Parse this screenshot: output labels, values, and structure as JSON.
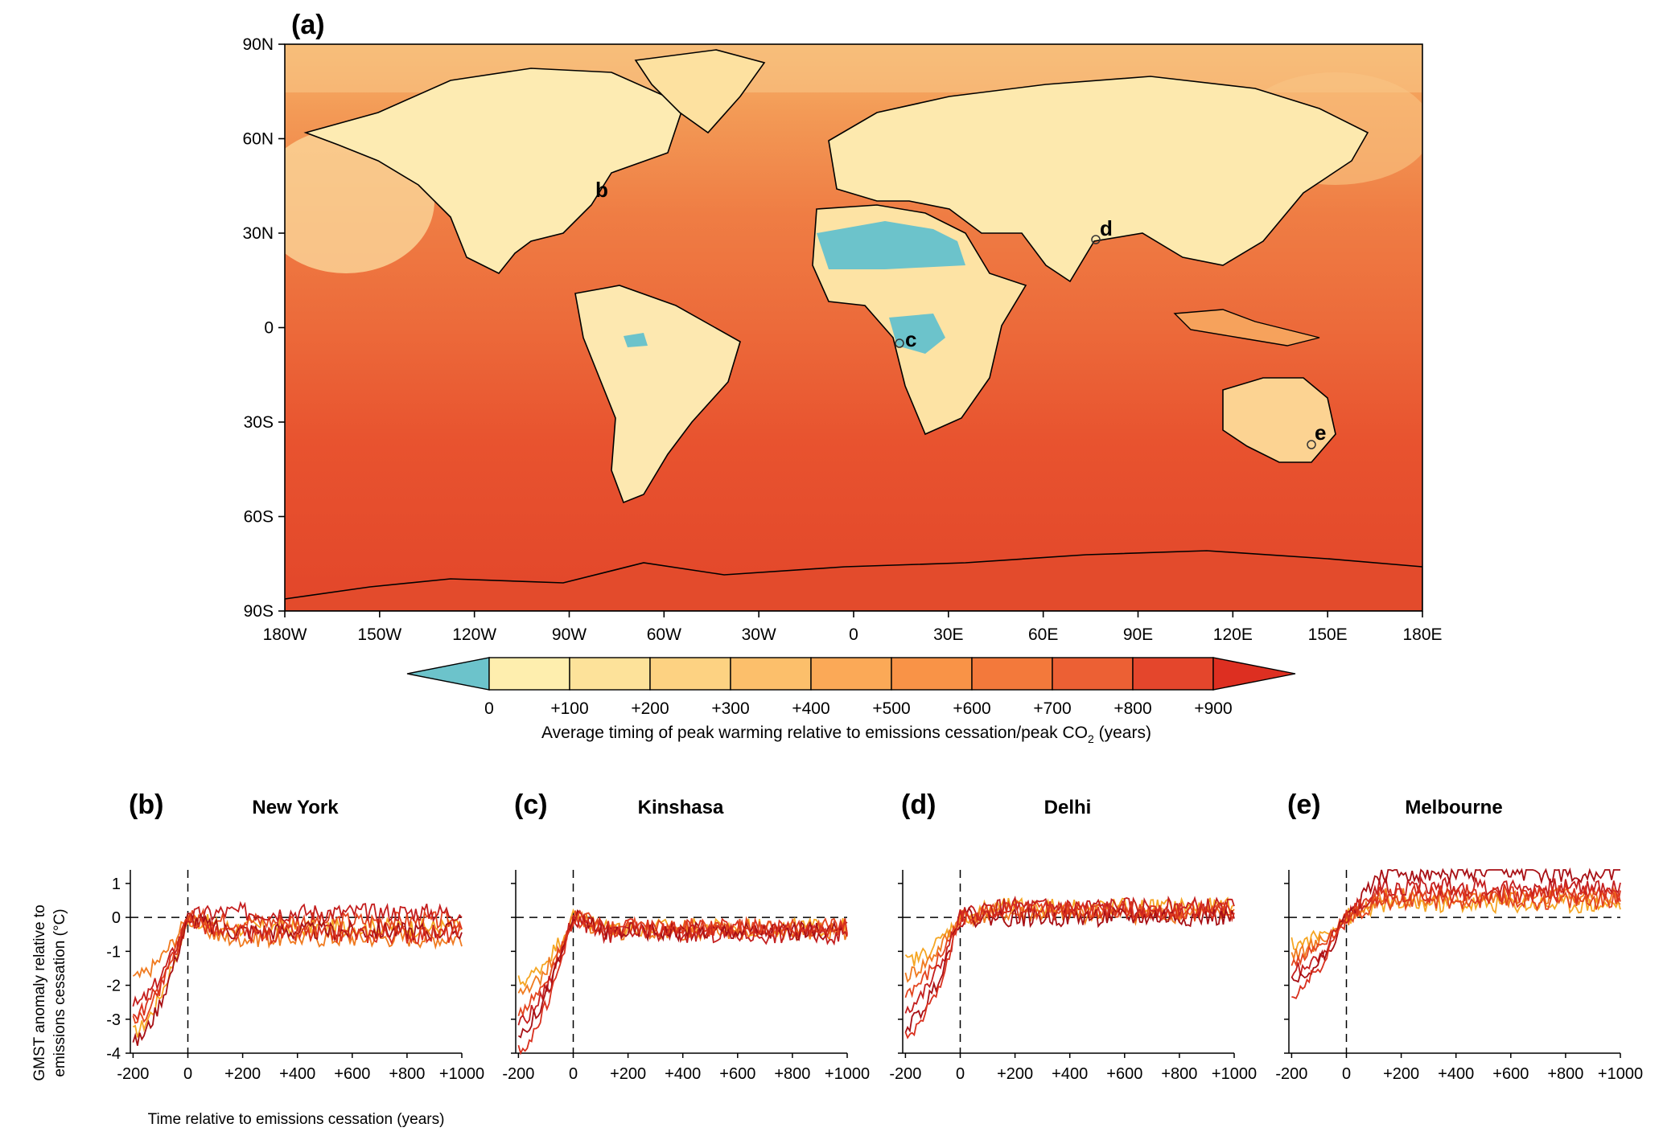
{
  "map": {
    "panel_label": "(a)",
    "lat_labels": [
      "90N",
      "60N",
      "30N",
      "0",
      "30S",
      "60S",
      "90S"
    ],
    "lon_labels": [
      "180W",
      "150W",
      "120W",
      "90W",
      "60W",
      "30W",
      "0",
      "30E",
      "60E",
      "90E",
      "120E",
      "150E",
      "180E"
    ],
    "site_markers": [
      "b",
      "c",
      "d",
      "e"
    ],
    "colorbar": {
      "tick_labels": [
        "0",
        "+100",
        "+200",
        "+300",
        "+400",
        "+500",
        "+600",
        "+700",
        "+800",
        "+900"
      ],
      "colors": [
        "#6cc3cb",
        "#feeeae",
        "#fde29a",
        "#fdd282",
        "#fcbf6b",
        "#fba957",
        "#f99347",
        "#f3793b",
        "#ec6034",
        "#e4462c",
        "#dd2f21"
      ],
      "title_main": "Average timing of peak warming relative to emissions cessation/peak CO",
      "title_sub": "2",
      "title_end": " (years)"
    }
  },
  "panels": [
    {
      "label": "(b)",
      "title": "New York",
      "start": [
        -3.4,
        -1.8,
        -3.1,
        -2.6,
        -3.7,
        -2.9
      ],
      "end": [
        -0.3,
        -0.6,
        -0.1,
        0.15,
        -0.4,
        -0.5
      ],
      "colors": [
        "#f5a623",
        "#f07a1f",
        "#e4451f",
        "#c41e1e",
        "#a80f14",
        "#d9301e"
      ]
    },
    {
      "label": "(c)",
      "title": "Kinshasa",
      "start": [
        -1.9,
        -2.3,
        -2.7,
        -3.1,
        -3.4,
        -3.9
      ],
      "end": [
        -0.3,
        -0.4,
        -0.3,
        -0.5,
        -0.4,
        -0.3
      ],
      "colors": [
        "#f5a623",
        "#f07a1f",
        "#e4451f",
        "#c41e1e",
        "#a80f14",
        "#d9301e"
      ]
    },
    {
      "label": "(d)",
      "title": "Delhi",
      "start": [
        -1.3,
        -1.7,
        -2.2,
        -2.7,
        -3.2,
        -3.6
      ],
      "end": [
        0.3,
        0.1,
        0.2,
        0.3,
        0.0,
        0.2
      ],
      "colors": [
        "#f5a623",
        "#f07a1f",
        "#e4451f",
        "#c41e1e",
        "#a80f14",
        "#d9301e"
      ]
    },
    {
      "label": "(e)",
      "title": "Melbourne",
      "start": [
        -0.8,
        -1.1,
        -1.3,
        -1.6,
        -1.9,
        -2.2
      ],
      "end": [
        0.4,
        0.6,
        0.5,
        0.9,
        1.3,
        0.7
      ],
      "colors": [
        "#f5a623",
        "#f07a1f",
        "#e4451f",
        "#c41e1e",
        "#a80f14",
        "#d9301e"
      ]
    }
  ],
  "line_axes": {
    "x_ticks": [
      "-200",
      "0",
      "+200",
      "+400",
      "+600",
      "+800",
      "+1000"
    ],
    "y_ticks": [
      "1",
      "0",
      "-1",
      "-2",
      "-3",
      "-4"
    ],
    "ylabel_line1": "GMST anomaly relative to",
    "ylabel_line2": "emissions cessation (°C)",
    "xlabel": "Time relative to emissions cessation (years)"
  },
  "chart_data": [
    {
      "type": "line",
      "title": "New York",
      "x": [
        -200,
        0,
        200,
        400,
        600,
        800,
        1000
      ],
      "xlim": [
        -210,
        1000
      ],
      "ylim": [
        -4,
        1.4
      ],
      "xlabel": "Time relative to emissions cessation (years)",
      "ylabel": "GMST anomaly relative to emissions cessation (°C)",
      "series": [
        {
          "values": [
            -3.4,
            0,
            -0.4,
            -0.5,
            -0.4,
            -0.3,
            -0.3
          ]
        },
        {
          "values": [
            -1.8,
            0,
            -0.5,
            -0.6,
            -0.6,
            -0.6,
            -0.6
          ]
        },
        {
          "values": [
            -3.1,
            0,
            -0.2,
            -0.1,
            -0.1,
            -0.1,
            -0.1
          ]
        },
        {
          "values": [
            -2.6,
            0,
            0.2,
            0.15,
            0.1,
            0.15,
            0.15
          ]
        },
        {
          "values": [
            -3.7,
            0,
            -0.4,
            -0.4,
            -0.4,
            -0.4,
            -0.4
          ]
        },
        {
          "values": [
            -2.9,
            0,
            -0.5,
            -0.5,
            -0.5,
            -0.5,
            -0.5
          ]
        }
      ]
    },
    {
      "type": "line",
      "title": "Kinshasa",
      "x": [
        -200,
        0,
        200,
        400,
        600,
        800,
        1000
      ],
      "xlim": [
        -210,
        1000
      ],
      "ylim": [
        -4,
        1.4
      ],
      "xlabel": "Time relative to emissions cessation (years)",
      "ylabel": "GMST anomaly relative to emissions cessation (°C)",
      "series": [
        {
          "values": [
            -1.9,
            0,
            -0.3,
            -0.3,
            -0.3,
            -0.3,
            -0.3
          ]
        },
        {
          "values": [
            -2.3,
            0,
            -0.4,
            -0.4,
            -0.4,
            -0.4,
            -0.4
          ]
        },
        {
          "values": [
            -2.7,
            0,
            -0.3,
            -0.3,
            -0.3,
            -0.3,
            -0.3
          ]
        },
        {
          "values": [
            -3.1,
            0,
            -0.5,
            -0.5,
            -0.5,
            -0.5,
            -0.5
          ]
        },
        {
          "values": [
            -3.4,
            0,
            -0.4,
            -0.4,
            -0.4,
            -0.4,
            -0.4
          ]
        },
        {
          "values": [
            -3.9,
            0,
            -0.3,
            -0.3,
            -0.3,
            -0.3,
            -0.3
          ]
        }
      ]
    },
    {
      "type": "line",
      "title": "Delhi",
      "x": [
        -200,
        0,
        200,
        400,
        600,
        800,
        1000
      ],
      "xlim": [
        -210,
        1000
      ],
      "ylim": [
        -4,
        1.4
      ],
      "xlabel": "Time relative to emissions cessation (years)",
      "ylabel": "GMST anomaly relative to emissions cessation (°C)",
      "series": [
        {
          "values": [
            -1.3,
            0,
            0.3,
            0.3,
            0.3,
            0.3,
            0.3
          ]
        },
        {
          "values": [
            -1.7,
            0,
            0.1,
            0.1,
            0.1,
            0.1,
            0.1
          ]
        },
        {
          "values": [
            -2.2,
            0,
            0.2,
            0.2,
            0.2,
            0.2,
            0.2
          ]
        },
        {
          "values": [
            -2.7,
            0,
            0.3,
            0.3,
            0.3,
            0.3,
            0.3
          ]
        },
        {
          "values": [
            -3.2,
            0,
            0.0,
            0.0,
            0.0,
            0.0,
            0.0
          ]
        },
        {
          "values": [
            -3.6,
            0,
            0.2,
            0.2,
            0.2,
            0.2,
            0.2
          ]
        }
      ]
    },
    {
      "type": "line",
      "title": "Melbourne",
      "x": [
        -200,
        0,
        200,
        400,
        600,
        800,
        1000
      ],
      "xlim": [
        -210,
        1000
      ],
      "ylim": [
        -4,
        1.4
      ],
      "xlabel": "Time relative to emissions cessation (years)",
      "ylabel": "GMST anomaly relative to emissions cessation (°C)",
      "series": [
        {
          "values": [
            -0.8,
            0,
            0.1,
            0.2,
            0.3,
            0.35,
            0.4
          ]
        },
        {
          "values": [
            -1.1,
            0,
            0.1,
            0.25,
            0.4,
            0.5,
            0.6
          ]
        },
        {
          "values": [
            -1.3,
            0,
            0.1,
            0.2,
            0.3,
            0.4,
            0.5
          ]
        },
        {
          "values": [
            -1.6,
            0,
            0.15,
            0.35,
            0.55,
            0.75,
            0.9
          ]
        },
        {
          "values": [
            -1.9,
            0,
            0.2,
            0.5,
            0.8,
            1.05,
            1.3
          ]
        },
        {
          "values": [
            -2.2,
            0,
            0.1,
            0.25,
            0.4,
            0.55,
            0.7
          ]
        }
      ]
    }
  ]
}
